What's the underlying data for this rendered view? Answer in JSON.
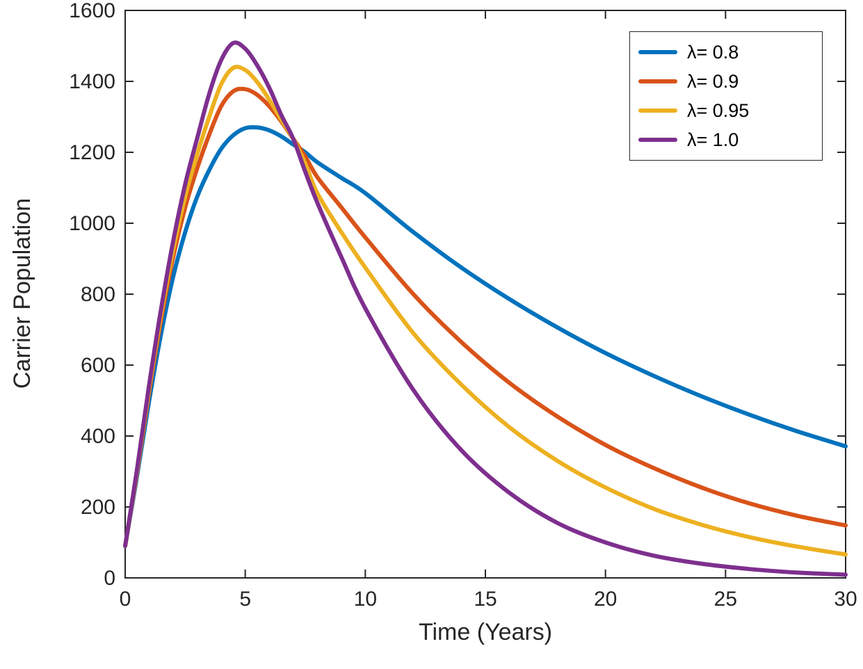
{
  "chart_data": {
    "type": "line",
    "title": "",
    "xlabel": "Time (Years)",
    "ylabel": "Carrier Population",
    "xlim": [
      0,
      30
    ],
    "ylim": [
      0,
      1600
    ],
    "xticks": [
      0,
      5,
      10,
      15,
      20,
      25,
      30
    ],
    "yticks": [
      0,
      200,
      400,
      600,
      800,
      1000,
      1200,
      1400,
      1600
    ],
    "grid": false,
    "legend_position": "top-right",
    "axis_color": "#262626",
    "background": "#ffffff",
    "x": [
      0,
      0.5,
      1,
      1.5,
      2,
      2.5,
      3,
      3.5,
      4,
      4.5,
      5,
      5.5,
      6,
      6.5,
      7,
      7.5,
      8,
      9,
      10,
      12,
      14,
      16,
      18,
      20,
      22,
      24,
      26,
      28,
      30
    ],
    "series": [
      {
        "label": "λ= 0.8",
        "color": "#0072BD",
        "values": [
          90,
          290,
          500,
          690,
          850,
          975,
          1075,
          1150,
          1210,
          1248,
          1268,
          1270,
          1262,
          1245,
          1222,
          1200,
          1172,
          1128,
          1085,
          975,
          875,
          786,
          706,
          634,
          570,
          512,
          460,
          413,
          371
        ]
      },
      {
        "label": "λ= 0.9",
        "color": "#D95319",
        "values": [
          90,
          300,
          525,
          730,
          905,
          1045,
          1155,
          1250,
          1330,
          1372,
          1378,
          1362,
          1330,
          1287,
          1238,
          1188,
          1130,
          1045,
          960,
          800,
          665,
          550,
          455,
          375,
          310,
          255,
          210,
          175,
          148
        ]
      },
      {
        "label": "λ= 0.95",
        "color": "#EDB120",
        "values": [
          90,
          305,
          535,
          745,
          925,
          1075,
          1195,
          1300,
          1392,
          1438,
          1432,
          1398,
          1348,
          1292,
          1238,
          1168,
          1085,
          975,
          875,
          690,
          545,
          425,
          330,
          255,
          195,
          150,
          115,
          88,
          66
        ]
      },
      {
        "label": "λ= 1.0",
        "color": "#7E2F8E",
        "values": [
          90,
          310,
          545,
          760,
          950,
          1110,
          1240,
          1365,
          1460,
          1508,
          1492,
          1445,
          1382,
          1305,
          1238,
          1145,
          1058,
          905,
          760,
          530,
          360,
          240,
          155,
          100,
          63,
          40,
          25,
          15,
          9
        ]
      }
    ]
  }
}
